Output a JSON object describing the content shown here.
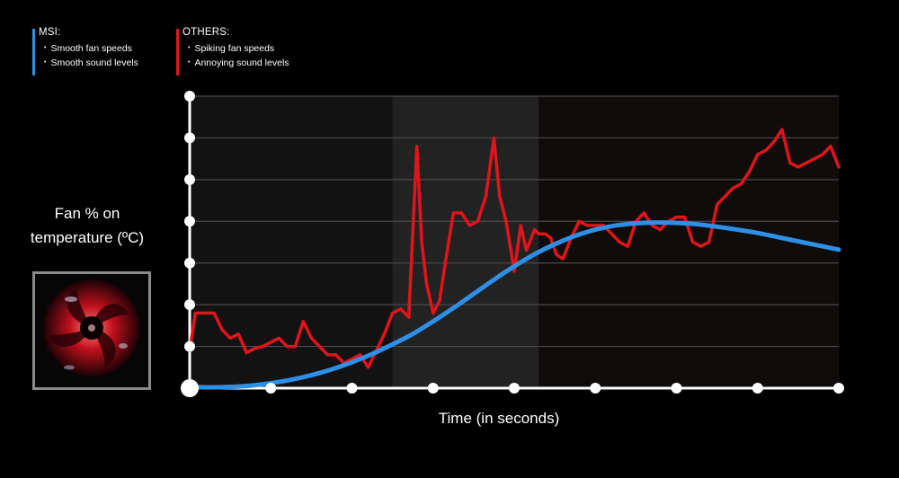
{
  "legend": {
    "msi": {
      "heading": "MSI:",
      "items": [
        "Smooth fan speeds",
        "Smooth sound levels"
      ]
    },
    "others": {
      "heading": "OTHERS:",
      "items": [
        "Spiking fan speeds",
        "Annoying sound levels"
      ]
    }
  },
  "colors": {
    "msi": "#2e8fe6",
    "others": "#e0141b",
    "background": "#000000"
  },
  "icons": {
    "fan": "fan-image"
  },
  "chart_data": {
    "type": "line",
    "title": "",
    "ylabel": "Fan % on temperature (ºC)",
    "xlabel": "Time (in seconds)",
    "xlim": [
      0,
      8
    ],
    "ylim": [
      0,
      7
    ],
    "grid": true,
    "legend": "top-left",
    "x_tick_count": 9,
    "y_tick_count": 8,
    "shaded_x_ranges": [
      [
        2.5,
        4.3
      ],
      [
        4.3,
        8
      ]
    ],
    "series": [
      {
        "name": "MSI",
        "color": "#2e8fe6",
        "smooth": true,
        "x": [
          0,
          0.25,
          0.5,
          0.75,
          1,
          1.25,
          1.5,
          1.75,
          2,
          2.25,
          2.5,
          2.75,
          3,
          3.25,
          3.5,
          3.75,
          4,
          4.25,
          4.5,
          4.75,
          5,
          5.25,
          5.5,
          5.75,
          6,
          6.25,
          6.5,
          6.75,
          7,
          7.25,
          7.5,
          7.75,
          8
        ],
        "values": [
          0.03,
          0.02,
          0.03,
          0.06,
          0.12,
          0.2,
          0.31,
          0.45,
          0.62,
          0.82,
          1.05,
          1.3,
          1.6,
          1.92,
          2.26,
          2.6,
          2.92,
          3.21,
          3.45,
          3.65,
          3.8,
          3.9,
          3.95,
          3.97,
          3.96,
          3.93,
          3.87,
          3.8,
          3.72,
          3.62,
          3.52,
          3.42,
          3.32
        ]
      },
      {
        "name": "OTHERS",
        "color": "#e0141b",
        "smooth": false,
        "x": [
          0,
          0.07,
          0.14,
          0.3,
          0.4,
          0.5,
          0.6,
          0.7,
          0.8,
          0.9,
          1.0,
          1.1,
          1.2,
          1.3,
          1.4,
          1.5,
          1.6,
          1.7,
          1.8,
          1.9,
          2.0,
          2.1,
          2.2,
          2.3,
          2.4,
          2.5,
          2.6,
          2.7,
          2.8,
          2.86,
          2.92,
          3.0,
          3.08,
          3.15,
          3.25,
          3.35,
          3.45,
          3.55,
          3.65,
          3.75,
          3.82,
          3.9,
          4.0,
          4.08,
          4.15,
          4.25,
          4.3,
          4.38,
          4.45,
          4.52,
          4.6,
          4.7,
          4.8,
          4.9,
          5.0,
          5.1,
          5.2,
          5.3,
          5.4,
          5.5,
          5.6,
          5.7,
          5.8,
          5.9,
          6.0,
          6.1,
          6.2,
          6.3,
          6.4,
          6.5,
          6.6,
          6.7,
          6.8,
          6.9,
          7.0,
          7.1,
          7.2,
          7.3,
          7.4,
          7.5,
          7.6,
          7.7,
          7.8,
          7.9,
          8.0
        ],
        "values": [
          0.9,
          1.8,
          1.8,
          1.8,
          1.4,
          1.2,
          1.3,
          0.85,
          0.95,
          1.0,
          1.1,
          1.2,
          1.0,
          1.0,
          1.6,
          1.2,
          1.0,
          0.8,
          0.8,
          0.6,
          0.7,
          0.8,
          0.5,
          0.9,
          1.3,
          1.8,
          1.9,
          1.7,
          5.8,
          3.5,
          2.5,
          1.8,
          2.1,
          3.0,
          4.2,
          4.2,
          3.9,
          4.0,
          4.6,
          6.0,
          4.6,
          4.0,
          2.8,
          3.9,
          3.3,
          3.8,
          3.7,
          3.7,
          3.6,
          3.2,
          3.1,
          3.6,
          4.0,
          3.9,
          3.9,
          3.9,
          3.7,
          3.5,
          3.4,
          4.0,
          4.2,
          3.9,
          3.8,
          4.0,
          4.1,
          4.1,
          3.5,
          3.4,
          3.5,
          4.4,
          4.6,
          4.8,
          4.9,
          5.2,
          5.6,
          5.7,
          5.9,
          6.2,
          5.4,
          5.3,
          5.4,
          5.5,
          5.6,
          5.8,
          5.3
        ]
      }
    ]
  }
}
